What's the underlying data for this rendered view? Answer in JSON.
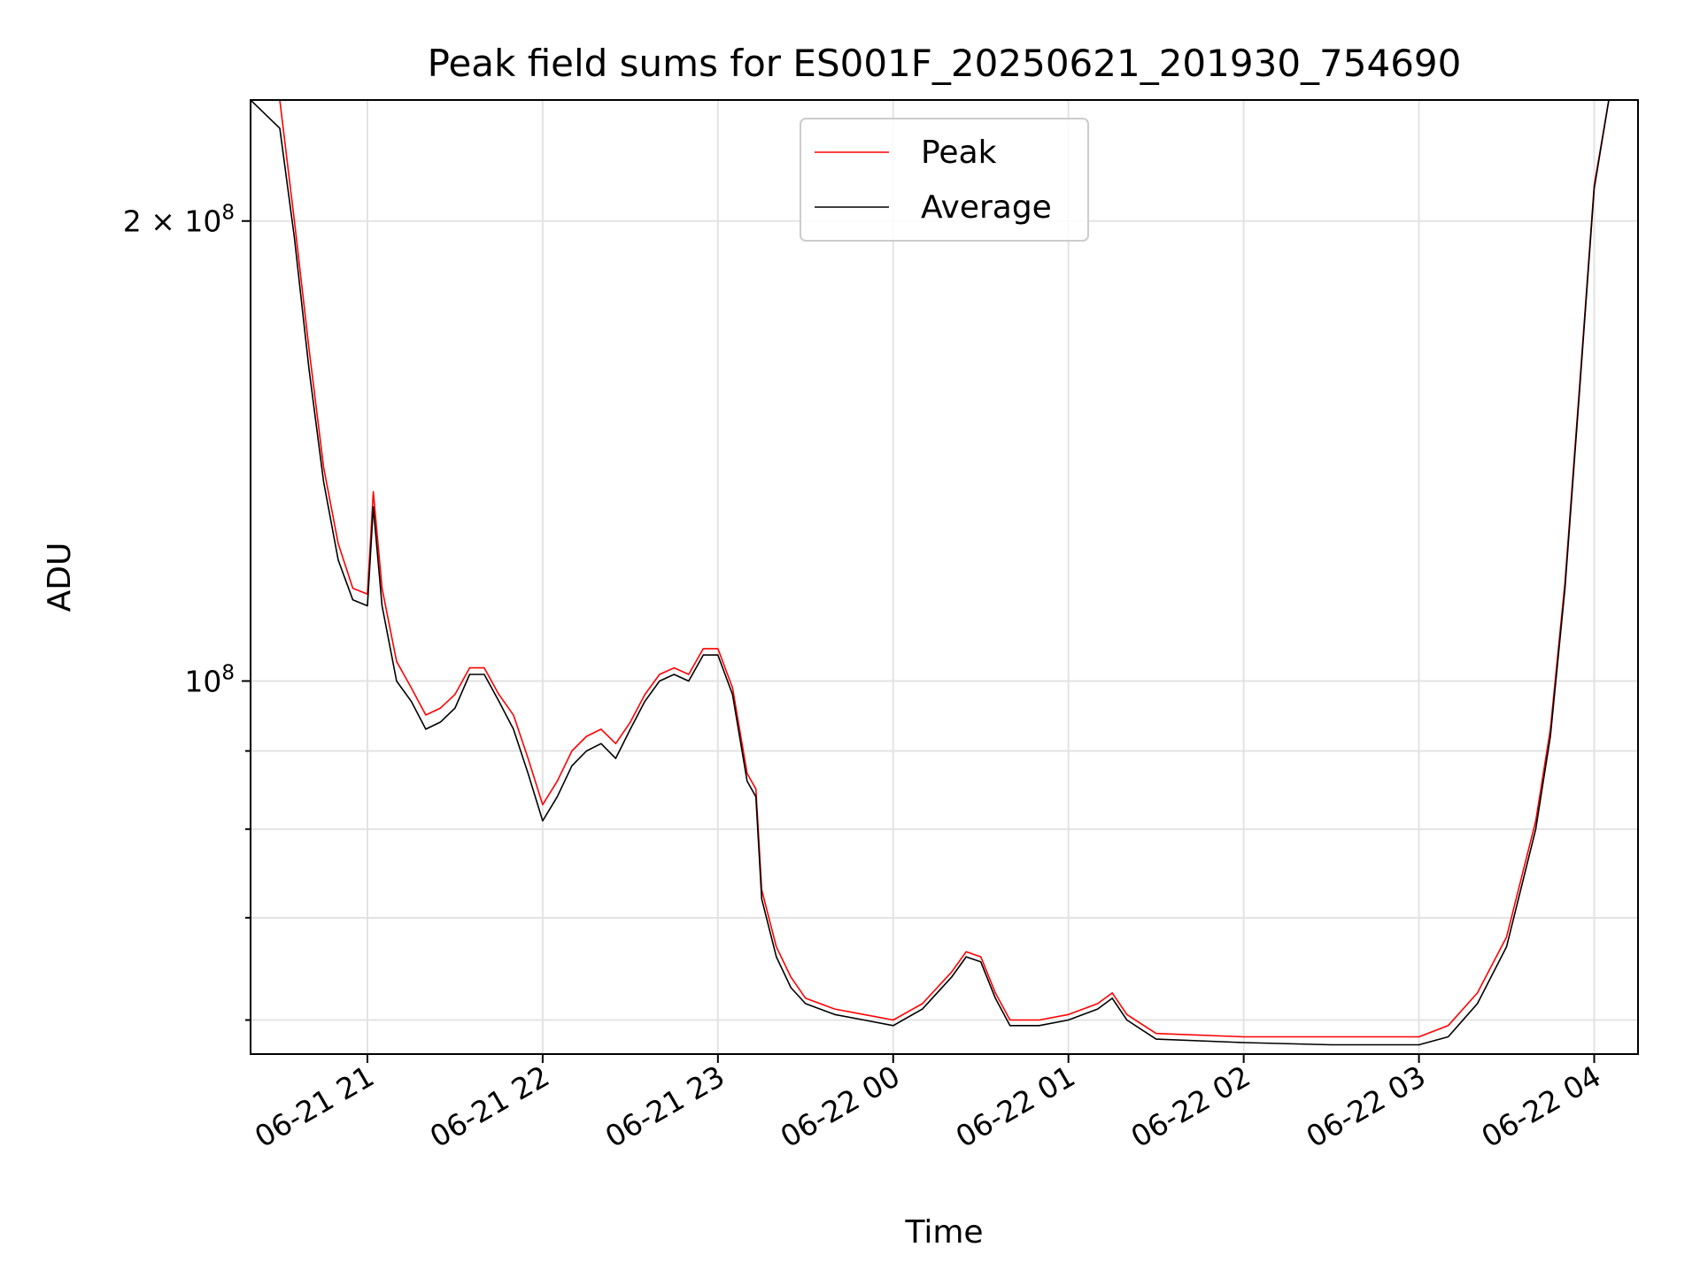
{
  "chart_data": {
    "type": "line",
    "title": "Peak field sums for ES001F_20250621_201930_754690",
    "xlabel": "Time",
    "ylabel": "ADU",
    "yscale": "log",
    "ylim": [
      57000000,
      240000000
    ],
    "xlim": [
      "2025-06-21 20:20",
      "2025-06-22 04:15"
    ],
    "grid": true,
    "legend": {
      "position": "top-center",
      "entries": [
        "Peak",
        "Average"
      ]
    },
    "colors": {
      "Peak": "#ff0000",
      "Average": "#000000"
    },
    "x_ticks": [
      {
        "value": "2025-06-21 21:00",
        "label": "06-21 21"
      },
      {
        "value": "2025-06-21 22:00",
        "label": "06-21 22"
      },
      {
        "value": "2025-06-21 23:00",
        "label": "06-21 23"
      },
      {
        "value": "2025-06-22 00:00",
        "label": "06-22 00"
      },
      {
        "value": "2025-06-22 01:00",
        "label": "06-22 01"
      },
      {
        "value": "2025-06-22 02:00",
        "label": "06-22 02"
      },
      {
        "value": "2025-06-22 03:00",
        "label": "06-22 03"
      },
      {
        "value": "2025-06-22 04:00",
        "label": "06-22 04"
      }
    ],
    "y_major_ticks": [
      {
        "value": 100000000,
        "label": "10",
        "exp": "8"
      },
      {
        "value": 200000000,
        "label": "2 × 10",
        "exp": "8"
      }
    ],
    "y_minor_ticks": [
      60000000,
      70000000,
      80000000,
      90000000
    ],
    "series": [
      {
        "name": "Average",
        "x": [
          "2025-06-21 20:20",
          "2025-06-21 20:30",
          "2025-06-21 20:35",
          "2025-06-21 20:40",
          "2025-06-21 20:45",
          "2025-06-21 20:50",
          "2025-06-21 20:55",
          "2025-06-21 21:00",
          "2025-06-21 21:02",
          "2025-06-21 21:05",
          "2025-06-21 21:10",
          "2025-06-21 21:15",
          "2025-06-21 21:20",
          "2025-06-21 21:25",
          "2025-06-21 21:30",
          "2025-06-21 21:35",
          "2025-06-21 21:40",
          "2025-06-21 21:45",
          "2025-06-21 21:50",
          "2025-06-21 21:55",
          "2025-06-21 22:00",
          "2025-06-21 22:05",
          "2025-06-21 22:10",
          "2025-06-21 22:15",
          "2025-06-21 22:20",
          "2025-06-21 22:25",
          "2025-06-21 22:30",
          "2025-06-21 22:35",
          "2025-06-21 22:40",
          "2025-06-21 22:45",
          "2025-06-21 22:50",
          "2025-06-21 22:55",
          "2025-06-21 23:00",
          "2025-06-21 23:05",
          "2025-06-21 23:10",
          "2025-06-21 23:13",
          "2025-06-21 23:15",
          "2025-06-21 23:20",
          "2025-06-21 23:25",
          "2025-06-21 23:30",
          "2025-06-21 23:40",
          "2025-06-21 23:50",
          "2025-06-22 00:00",
          "2025-06-22 00:10",
          "2025-06-22 00:20",
          "2025-06-22 00:25",
          "2025-06-22 00:30",
          "2025-06-22 00:35",
          "2025-06-22 00:40",
          "2025-06-22 00:50",
          "2025-06-22 01:00",
          "2025-06-22 01:10",
          "2025-06-22 01:15",
          "2025-06-22 01:20",
          "2025-06-22 01:30",
          "2025-06-22 02:00",
          "2025-06-22 02:30",
          "2025-06-22 03:00",
          "2025-06-22 03:10",
          "2025-06-22 03:20",
          "2025-06-22 03:30",
          "2025-06-22 03:40",
          "2025-06-22 03:45",
          "2025-06-22 03:50",
          "2025-06-22 03:55",
          "2025-06-22 04:00",
          "2025-06-22 04:05",
          "2025-06-22 04:10",
          "2025-06-22 04:15"
        ],
        "values": [
          240000000,
          230000000,
          195000000,
          160000000,
          135000000,
          120000000,
          113000000,
          112000000,
          130000000,
          112000000,
          100000000,
          97000000,
          93000000,
          94000000,
          96000000,
          101000000,
          101000000,
          97000000,
          93000000,
          87000000,
          81000000,
          84000000,
          88000000,
          90000000,
          91000000,
          89000000,
          93000000,
          97000000,
          100000000,
          101000000,
          100000000,
          104000000,
          104000000,
          98000000,
          86000000,
          84000000,
          72000000,
          66000000,
          63000000,
          61500000,
          60500000,
          60000000,
          59500000,
          61000000,
          64000000,
          66000000,
          65500000,
          62000000,
          59500000,
          59500000,
          60000000,
          61000000,
          62000000,
          60000000,
          58300000,
          58000000,
          57800000,
          57800000,
          58500000,
          61500000,
          67000000,
          80000000,
          92000000,
          115000000,
          155000000,
          210000000,
          240000000,
          240000000,
          240000000
        ]
      },
      {
        "name": "Peak",
        "x": [
          "2025-06-21 20:20",
          "2025-06-21 20:30",
          "2025-06-21 20:35",
          "2025-06-21 20:40",
          "2025-06-21 20:45",
          "2025-06-21 20:50",
          "2025-06-21 20:55",
          "2025-06-21 21:00",
          "2025-06-21 21:02",
          "2025-06-21 21:05",
          "2025-06-21 21:10",
          "2025-06-21 21:15",
          "2025-06-21 21:20",
          "2025-06-21 21:25",
          "2025-06-21 21:30",
          "2025-06-21 21:35",
          "2025-06-21 21:40",
          "2025-06-21 21:45",
          "2025-06-21 21:50",
          "2025-06-21 21:55",
          "2025-06-21 22:00",
          "2025-06-21 22:05",
          "2025-06-21 22:10",
          "2025-06-21 22:15",
          "2025-06-21 22:20",
          "2025-06-21 22:25",
          "2025-06-21 22:30",
          "2025-06-21 22:35",
          "2025-06-21 22:40",
          "2025-06-21 22:45",
          "2025-06-21 22:50",
          "2025-06-21 22:55",
          "2025-06-21 23:00",
          "2025-06-21 23:05",
          "2025-06-21 23:10",
          "2025-06-21 23:13",
          "2025-06-21 23:15",
          "2025-06-21 23:20",
          "2025-06-21 23:25",
          "2025-06-21 23:30",
          "2025-06-21 23:40",
          "2025-06-21 23:50",
          "2025-06-22 00:00",
          "2025-06-22 00:10",
          "2025-06-22 00:20",
          "2025-06-22 00:25",
          "2025-06-22 00:30",
          "2025-06-22 00:35",
          "2025-06-22 00:40",
          "2025-06-22 00:50",
          "2025-06-22 01:00",
          "2025-06-22 01:10",
          "2025-06-22 01:15",
          "2025-06-22 01:20",
          "2025-06-22 01:30",
          "2025-06-22 02:00",
          "2025-06-22 02:30",
          "2025-06-22 03:00",
          "2025-06-22 03:10",
          "2025-06-22 03:20",
          "2025-06-22 03:30",
          "2025-06-22 03:40",
          "2025-06-22 03:45",
          "2025-06-22 03:50",
          "2025-06-22 03:55",
          "2025-06-22 04:00",
          "2025-06-22 04:05",
          "2025-06-22 04:10",
          "2025-06-22 04:15"
        ],
        "values": [
          240000000,
          240000000,
          200000000,
          165000000,
          138000000,
          123000000,
          115000000,
          114000000,
          133000000,
          115000000,
          103000000,
          99000000,
          95000000,
          96000000,
          98000000,
          102000000,
          102000000,
          98000000,
          95000000,
          89000000,
          83000000,
          86000000,
          90000000,
          92000000,
          93000000,
          91000000,
          94000000,
          98000000,
          101000000,
          102000000,
          101000000,
          105000000,
          105000000,
          99000000,
          87000000,
          85000000,
          73000000,
          67000000,
          64000000,
          62000000,
          61000000,
          60500000,
          60000000,
          61500000,
          64500000,
          66500000,
          66000000,
          62500000,
          60000000,
          60000000,
          60500000,
          61500000,
          62500000,
          60500000,
          58800000,
          58500000,
          58500000,
          58500000,
          59500000,
          62500000,
          68000000,
          81000000,
          93000000,
          116000000,
          156000000,
          211000000,
          240000000,
          240000000,
          240000000
        ]
      }
    ]
  }
}
